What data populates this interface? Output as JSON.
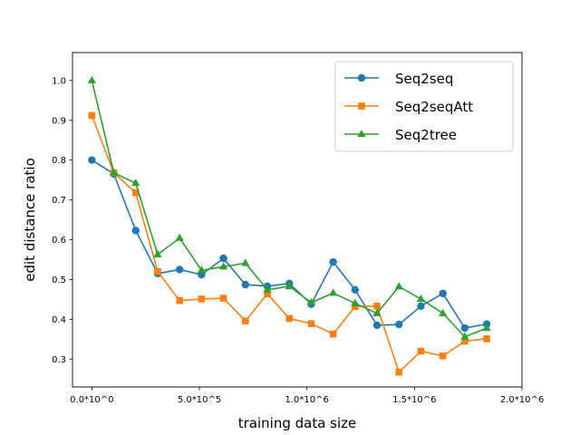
{
  "chart_data": {
    "type": "line",
    "title": "",
    "xlabel": "training data size",
    "ylabel": "edit distance ratio",
    "xlim": [
      -90000,
      2000000
    ],
    "ylim": [
      0.23,
      1.07
    ],
    "grid": false,
    "legend_position": "top-right",
    "x_ticks": [
      {
        "value": 0,
        "label": "0.0*10^0"
      },
      {
        "value": 500000,
        "label": "5.0*10^5"
      },
      {
        "value": 1000000,
        "label": "1.0*10^6"
      },
      {
        "value": 1500000,
        "label": "1.5*10^6"
      },
      {
        "value": 2000000,
        "label": "2.0*10^6"
      }
    ],
    "y_ticks": [
      {
        "value": 0.3,
        "label": "0.3"
      },
      {
        "value": 0.4,
        "label": "0.4"
      },
      {
        "value": 0.5,
        "label": "0.5"
      },
      {
        "value": 0.6,
        "label": "0.6"
      },
      {
        "value": 0.7,
        "label": "0.7"
      },
      {
        "value": 0.8,
        "label": "0.8"
      },
      {
        "value": 0.9,
        "label": "0.9"
      },
      {
        "value": 1.0,
        "label": "1.0"
      }
    ],
    "x": [
      0,
      102000,
      204000,
      306000,
      408000,
      510000,
      612000,
      714000,
      816000,
      918000,
      1020000,
      1122000,
      1224000,
      1326000,
      1428000,
      1530000,
      1632000,
      1734000,
      1836000
    ],
    "series": [
      {
        "name": "Seq2seq",
        "color": "#1f77b4",
        "marker": "circle",
        "values": [
          0.8,
          0.765,
          0.623,
          0.515,
          0.525,
          0.512,
          0.553,
          0.487,
          0.483,
          0.49,
          0.438,
          0.544,
          0.474,
          0.385,
          0.387,
          0.433,
          0.465,
          0.378,
          0.388
        ]
      },
      {
        "name": "Seq2seqAtt",
        "color": "#ff7f0e",
        "marker": "square",
        "values": [
          0.912,
          0.768,
          0.718,
          0.52,
          0.447,
          0.451,
          0.453,
          0.396,
          0.464,
          0.402,
          0.389,
          0.363,
          0.432,
          0.433,
          0.267,
          0.32,
          0.308,
          0.345,
          0.351
        ]
      },
      {
        "name": "Seq2tree",
        "color": "#2ca02c",
        "marker": "triangle",
        "values": [
          1.0,
          0.768,
          0.742,
          0.563,
          0.604,
          0.523,
          0.532,
          0.541,
          0.474,
          0.483,
          0.442,
          0.466,
          0.44,
          0.415,
          0.482,
          0.451,
          0.415,
          0.356,
          0.378
        ]
      }
    ]
  }
}
